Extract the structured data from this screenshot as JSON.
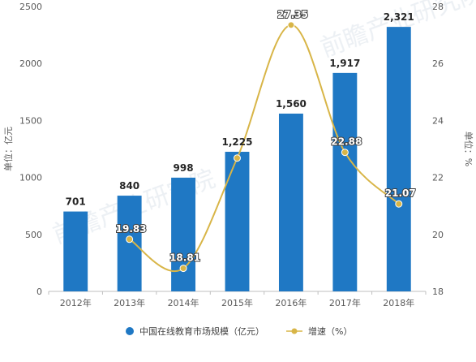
{
  "chart_data": {
    "type": "bar",
    "categories": [
      "2012年",
      "2013年",
      "2014年",
      "2015年",
      "2016年",
      "2017年",
      "2018年"
    ],
    "series": [
      {
        "name": "中国在线教育市场规模（亿元）",
        "type": "bar",
        "axis": "left",
        "values": [
          701,
          840,
          998,
          1225,
          1560,
          1917,
          2321
        ],
        "labels": [
          "701",
          "840",
          "998",
          "1,225",
          "1,560",
          "1,917",
          "2,321"
        ]
      },
      {
        "name": "增速（%）",
        "type": "line",
        "axis": "right",
        "smooth": true,
        "values": [
          null,
          19.83,
          18.81,
          22.68,
          27.35,
          22.88,
          21.07
        ],
        "labels": [
          "",
          "19.83",
          "18.81",
          "",
          "27.35",
          "22.88",
          "21.07"
        ]
      }
    ],
    "ylabel": "单位：亿元",
    "y2label": "单位：%",
    "ylim": [
      0,
      2500
    ],
    "y2lim": [
      18,
      28
    ],
    "yticks": [
      0,
      500,
      1000,
      1500,
      2000,
      2500
    ],
    "y2ticks": [
      18,
      20,
      22,
      24,
      26,
      28
    ],
    "legend": {
      "position": "bottom",
      "bar_label": "中国在线教育市场规模（亿元）",
      "line_label": "增速（%）"
    },
    "colors": {
      "bar": "#1f78c4",
      "line": "#d8b547",
      "marker": "#d8b547",
      "axis_text": "#595959",
      "grid": "#e6e6e6"
    },
    "grid": false
  }
}
